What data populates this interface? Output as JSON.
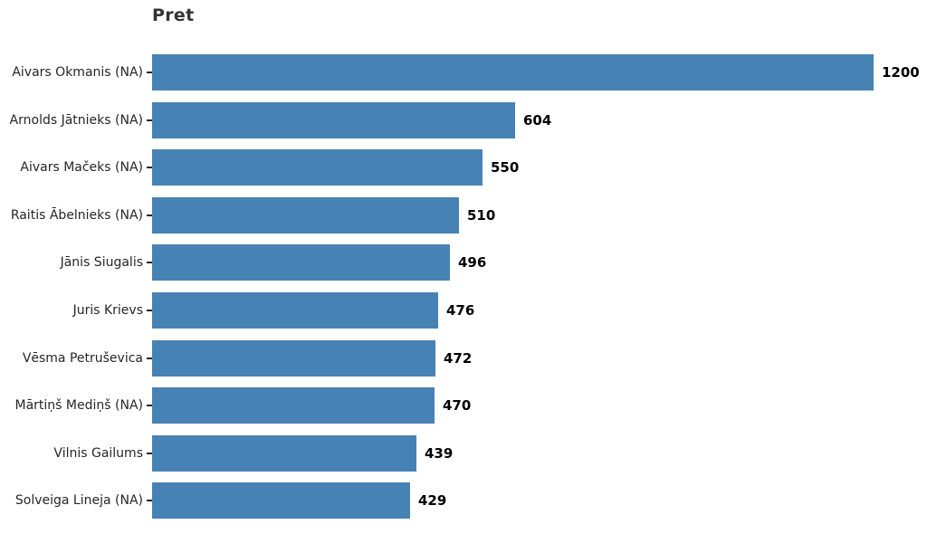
{
  "chart_data": {
    "type": "bar",
    "orientation": "horizontal",
    "title": "Pret",
    "categories": [
      "Aivars Okmanis (NA)",
      "Arnolds Jātnieks (NA)",
      "Aivars Mačeks (NA)",
      "Raitis Ābelnieks (NA)",
      "Jānis Siugalis",
      "Juris Krievs",
      "Vēsma Petruševica",
      "Mārtiņš Mediņš (NA)",
      "Vilnis Gailums",
      "Solveiga Lineja (NA)"
    ],
    "values": [
      1200,
      604,
      550,
      510,
      496,
      476,
      472,
      470,
      439,
      429
    ],
    "value_labels": [
      "1200",
      "604",
      "550",
      "510",
      "496",
      "476",
      "472",
      "470",
      "439",
      "429"
    ],
    "xlim": [
      0,
      1200
    ],
    "xlabel": "",
    "ylabel": "",
    "grid": false,
    "legend": "none",
    "value_labels_shown": true,
    "colors": {
      "bar": "#4682b4",
      "value_label": "#000000",
      "category_label": "#262626",
      "title": "#333333",
      "tick": "#262626",
      "background": "#ffffff"
    }
  }
}
